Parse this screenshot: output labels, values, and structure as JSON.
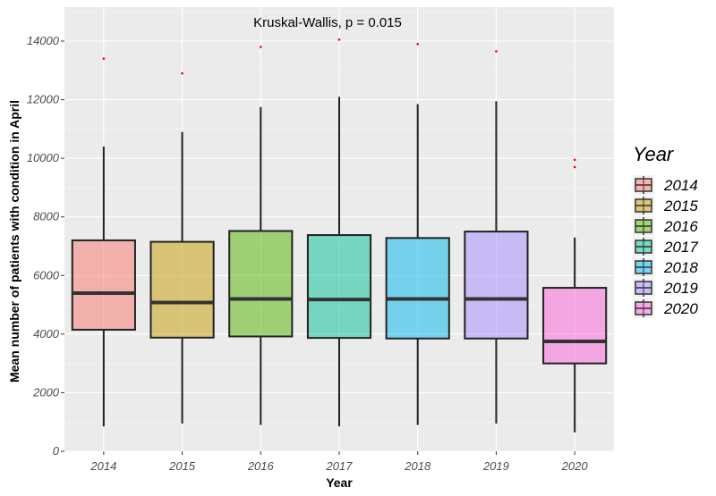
{
  "chart_data": {
    "type": "boxplot",
    "annotation": "Kruskal-Wallis, p = 0.015",
    "xlabel": "Year",
    "ylabel": "Mean number of patients with condition in April",
    "ylim": [
      0,
      15000
    ],
    "yticks": [
      0,
      2000,
      4000,
      6000,
      8000,
      10000,
      12000,
      14000
    ],
    "y_tick_labels": [
      "0",
      "2000",
      "4000",
      "6000",
      "8000",
      "10000",
      "12000",
      "14000"
    ],
    "grid": true,
    "legend": {
      "title": "Year",
      "position": "right"
    },
    "categories": [
      "2014",
      "2015",
      "2016",
      "2017",
      "2018",
      "2019",
      "2020"
    ],
    "colors": [
      "#F8766D",
      "#C49A00",
      "#53B400",
      "#00C094",
      "#00B6EB",
      "#A58AFF",
      "#FB61D7"
    ],
    "boxes": [
      {
        "min": 850,
        "q1": 4150,
        "median": 5400,
        "q3": 7200,
        "max": 10400,
        "outliers": [
          13400
        ]
      },
      {
        "min": 950,
        "q1": 3880,
        "median": 5080,
        "q3": 7150,
        "max": 10900,
        "outliers": [
          12900
        ]
      },
      {
        "min": 900,
        "q1": 3920,
        "median": 5200,
        "q3": 7520,
        "max": 11750,
        "outliers": [
          13800
        ]
      },
      {
        "min": 850,
        "q1": 3870,
        "median": 5180,
        "q3": 7380,
        "max": 12100,
        "outliers": [
          14050
        ]
      },
      {
        "min": 900,
        "q1": 3850,
        "median": 5200,
        "q3": 7280,
        "max": 11850,
        "outliers": [
          13900
        ]
      },
      {
        "min": 950,
        "q1": 3850,
        "median": 5200,
        "q3": 7500,
        "max": 11950,
        "outliers": [
          13650
        ]
      },
      {
        "min": 650,
        "q1": 3000,
        "median": 3750,
        "q3": 5580,
        "max": 7300,
        "outliers": [
          9700,
          9950
        ]
      }
    ]
  }
}
